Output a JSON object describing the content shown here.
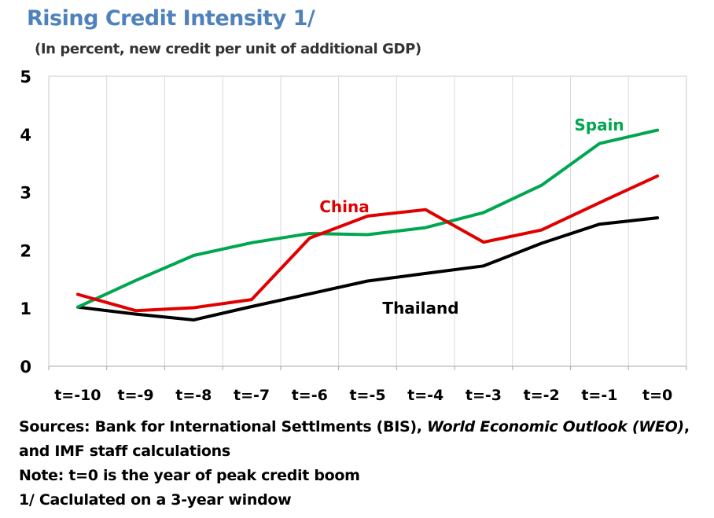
{
  "chart_data": {
    "type": "line",
    "title": "Rising Credit Intensity 1/",
    "subtitle": "(In percent, new credit per unit of additional GDP)",
    "categories": [
      "t=-10",
      "t=-9",
      "t=-8",
      "t=-7",
      "t=-6",
      "t=-5",
      "t=-4",
      "t=-3",
      "t=-2",
      "t=-1",
      "t=0"
    ],
    "ylim": [
      0,
      5
    ],
    "yticks": [
      0,
      1,
      2,
      3,
      4,
      5
    ],
    "grid": "vertical",
    "series": [
      {
        "name": "Spain",
        "color": "#00a650",
        "values": [
          1.02,
          1.48,
          1.91,
          2.13,
          2.29,
          2.27,
          2.39,
          2.65,
          3.12,
          3.84,
          4.07
        ]
      },
      {
        "name": "China",
        "color": "#e00000",
        "values": [
          1.24,
          0.96,
          1.01,
          1.15,
          2.21,
          2.59,
          2.7,
          2.14,
          2.35,
          2.82,
          3.28
        ]
      },
      {
        "name": "Thailand",
        "color": "#000000",
        "values": [
          1.02,
          0.9,
          0.8,
          1.03,
          1.25,
          1.47,
          1.6,
          1.73,
          2.12,
          2.45,
          2.56
        ]
      }
    ]
  },
  "footer": {
    "sources_prefix": "Sources: Bank for International Settlments (BIS), ",
    "sources_italic": "World Economic Outlook (WEO)",
    "sources_suffix": ",",
    "sources_line2": "and IMF staff calculations",
    "note": "Note: t=0 is the year of peak credit boom",
    "footnote": "1/ Caclulated on a 3-year window"
  }
}
